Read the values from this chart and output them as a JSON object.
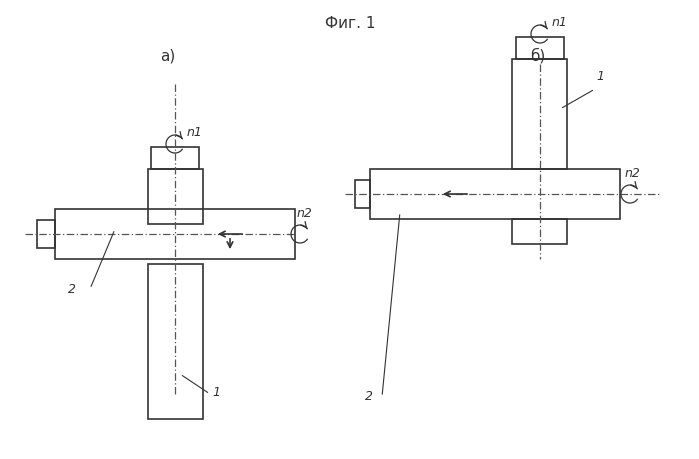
{
  "fig_width": 6.99,
  "fig_height": 4.6,
  "dpi": 100,
  "bg_color": "#ffffff",
  "line_color": "#333333",
  "dash_color": "#555555",
  "caption": "Фиг. 1",
  "label_a": "а)",
  "label_b": "б)",
  "lw": 1.2,
  "thin_lw": 0.8
}
